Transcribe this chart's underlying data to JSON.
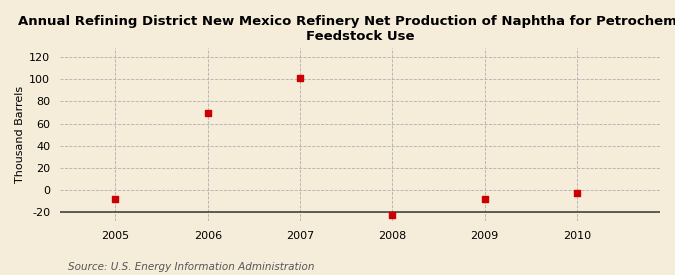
{
  "title": "Annual Refining District New Mexico Refinery Net Production of Naphtha for Petrochemical\nFeedstock Use",
  "ylabel": "Thousand Barrels",
  "source": "Source: U.S. Energy Information Administration",
  "x": [
    2005,
    2006,
    2007,
    2008,
    2009,
    2010
  ],
  "y": [
    -8,
    70,
    101,
    -23,
    -8,
    -3
  ],
  "xlim": [
    2004.4,
    2010.9
  ],
  "ylim": [
    -28,
    128
  ],
  "yticks": [
    -20,
    0,
    20,
    40,
    60,
    80,
    100,
    120
  ],
  "xticks": [
    2005,
    2006,
    2007,
    2008,
    2009,
    2010
  ],
  "marker_color": "#cc0000",
  "marker": "s",
  "marker_size": 4,
  "bg_color": "#f5edda",
  "grid_color": "#b0b0b0",
  "title_fontsize": 9.5,
  "axis_label_fontsize": 8,
  "tick_fontsize": 8,
  "source_fontsize": 7.5
}
